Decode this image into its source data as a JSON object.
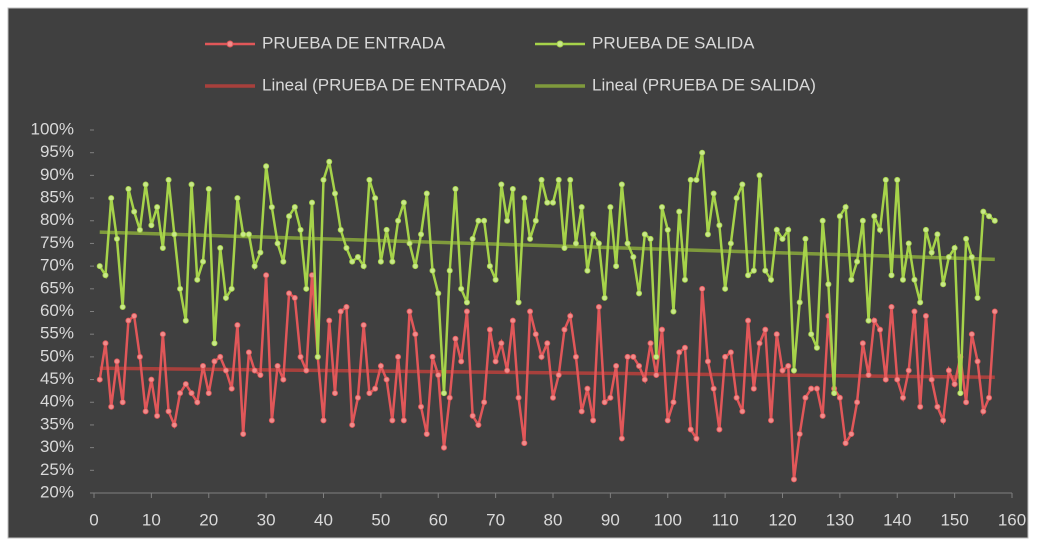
{
  "chart_data": {
    "type": "line",
    "x": [
      1,
      2,
      3,
      4,
      5,
      6,
      7,
      8,
      9,
      10,
      11,
      12,
      13,
      14,
      15,
      16,
      17,
      18,
      19,
      20,
      21,
      22,
      23,
      24,
      25,
      26,
      27,
      28,
      29,
      30,
      31,
      32,
      33,
      34,
      35,
      36,
      37,
      38,
      39,
      40,
      41,
      42,
      43,
      44,
      45,
      46,
      47,
      48,
      49,
      50,
      51,
      52,
      53,
      54,
      55,
      56,
      57,
      58,
      59,
      60,
      61,
      62,
      63,
      64,
      65,
      66,
      67,
      68,
      69,
      70,
      71,
      72,
      73,
      74,
      75,
      76,
      77,
      78,
      79,
      80,
      81,
      82,
      83,
      84,
      85,
      86,
      87,
      88,
      89,
      90,
      91,
      92,
      93,
      94,
      95,
      96,
      97,
      98,
      99,
      100,
      101,
      102,
      103,
      104,
      105,
      106,
      107,
      108,
      109,
      110,
      111,
      112,
      113,
      114,
      115,
      116,
      117,
      118,
      119,
      120,
      121,
      122,
      123,
      124,
      125,
      126,
      127,
      128,
      129,
      130,
      131,
      132,
      133,
      134,
      135,
      136,
      137,
      138,
      139,
      140,
      141,
      142,
      143,
      144,
      145,
      146,
      147,
      148,
      149,
      150,
      151,
      152,
      153,
      154,
      155,
      156,
      157
    ],
    "series": [
      {
        "name": "PRUEBA DE ENTRADA",
        "color": "#e15759",
        "marker": "#f08c8c",
        "values": [
          45,
          53,
          39,
          49,
          40,
          58,
          59,
          50,
          38,
          45,
          37,
          55,
          38,
          35,
          42,
          44,
          42,
          40,
          48,
          42,
          49,
          50,
          47,
          43,
          57,
          33,
          51,
          47,
          46,
          68,
          36,
          48,
          45,
          64,
          63,
          50,
          47,
          68,
          50,
          36,
          58,
          42,
          60,
          61,
          35,
          41,
          57,
          42,
          43,
          48,
          45,
          36,
          50,
          36,
          60,
          55,
          39,
          33,
          50,
          46,
          30,
          41,
          54,
          49,
          60,
          37,
          35,
          40,
          56,
          49,
          53,
          47,
          58,
          41,
          31,
          60,
          55,
          50,
          53,
          41,
          46,
          56,
          59,
          50,
          38,
          43,
          36,
          61,
          40,
          41,
          48,
          32,
          50,
          50,
          48,
          45,
          53,
          46,
          56,
          36,
          40,
          51,
          52,
          34,
          32,
          65,
          49,
          43,
          34,
          50,
          51,
          41,
          38,
          58,
          43,
          53,
          56,
          36,
          55,
          47,
          48,
          23,
          33,
          41,
          43,
          43,
          37,
          59,
          43,
          41,
          31,
          33,
          40,
          53,
          46,
          58,
          56,
          45,
          61,
          45,
          41,
          47,
          60,
          39,
          59,
          45,
          39,
          36,
          47,
          44,
          50,
          40,
          55,
          49,
          38,
          41,
          60
        ]
      },
      {
        "name": "PRUEBA DE SALIDA",
        "color": "#a6d34a",
        "marker": "#c8e88a",
        "values": [
          70,
          68,
          85,
          76,
          61,
          87,
          82,
          78,
          88,
          79,
          83,
          74,
          89,
          77,
          65,
          58,
          88,
          67,
          71,
          87,
          53,
          74,
          63,
          65,
          85,
          77,
          77,
          70,
          73,
          92,
          83,
          75,
          71,
          81,
          83,
          78,
          65,
          84,
          50,
          89,
          93,
          86,
          78,
          74,
          71,
          72,
          70,
          89,
          85,
          71,
          78,
          71,
          80,
          84,
          75,
          70,
          77,
          86,
          69,
          64,
          42,
          69,
          87,
          65,
          62,
          76,
          80,
          80,
          70,
          67,
          88,
          80,
          87,
          62,
          85,
          76,
          80,
          89,
          84,
          84,
          89,
          74,
          89,
          75,
          83,
          69,
          77,
          75,
          63,
          83,
          70,
          88,
          75,
          72,
          64,
          77,
          76,
          50,
          83,
          78,
          60,
          82,
          67,
          89,
          89,
          95,
          77,
          86,
          79,
          65,
          75,
          85,
          88,
          68,
          69,
          90,
          69,
          67,
          78,
          76,
          78,
          47,
          62,
          76,
          55,
          52,
          80,
          66,
          42,
          81,
          83,
          67,
          71,
          80,
          58,
          81,
          78,
          89,
          68,
          89,
          67,
          75,
          67,
          62,
          78,
          73,
          77,
          66,
          72,
          74,
          42,
          76,
          72,
          63,
          82,
          81,
          80
        ]
      }
    ],
    "trendlines": [
      {
        "name": "Lineal (PRUEBA DE ENTRADA)",
        "color": "#a8403c",
        "x": [
          1,
          157
        ],
        "values": [
          47.5,
          45.5
        ]
      },
      {
        "name": "Lineal (PRUEBA DE SALIDA)",
        "color": "#7f9a3c",
        "x": [
          1,
          157
        ],
        "values": [
          77.5,
          71.5
        ]
      }
    ],
    "xlim": [
      0,
      160
    ],
    "xticks": [
      0,
      10,
      20,
      30,
      40,
      50,
      60,
      70,
      80,
      90,
      100,
      110,
      120,
      130,
      140,
      150,
      160
    ],
    "ylim": [
      20,
      100
    ],
    "yticks": [
      {
        "value": 20,
        "label": "20%"
      },
      {
        "value": 25,
        "label": "25%"
      },
      {
        "value": 30,
        "label": "30%"
      },
      {
        "value": 35,
        "label": "35%"
      },
      {
        "value": 40,
        "label": "40%"
      },
      {
        "value": 45,
        "label": "45%"
      },
      {
        "value": 50,
        "label": "50%"
      },
      {
        "value": 55,
        "label": "55%"
      },
      {
        "value": 60,
        "label": "60%"
      },
      {
        "value": 65,
        "label": "65%"
      },
      {
        "value": 70,
        "label": "70%"
      },
      {
        "value": 75,
        "label": "75%"
      },
      {
        "value": 80,
        "label": "80%"
      },
      {
        "value": 85,
        "label": "85%"
      },
      {
        "value": 90,
        "label": "90%"
      },
      {
        "value": 95,
        "label": "95%"
      },
      {
        "value": 100,
        "label": "100%"
      }
    ],
    "legend": "top"
  }
}
